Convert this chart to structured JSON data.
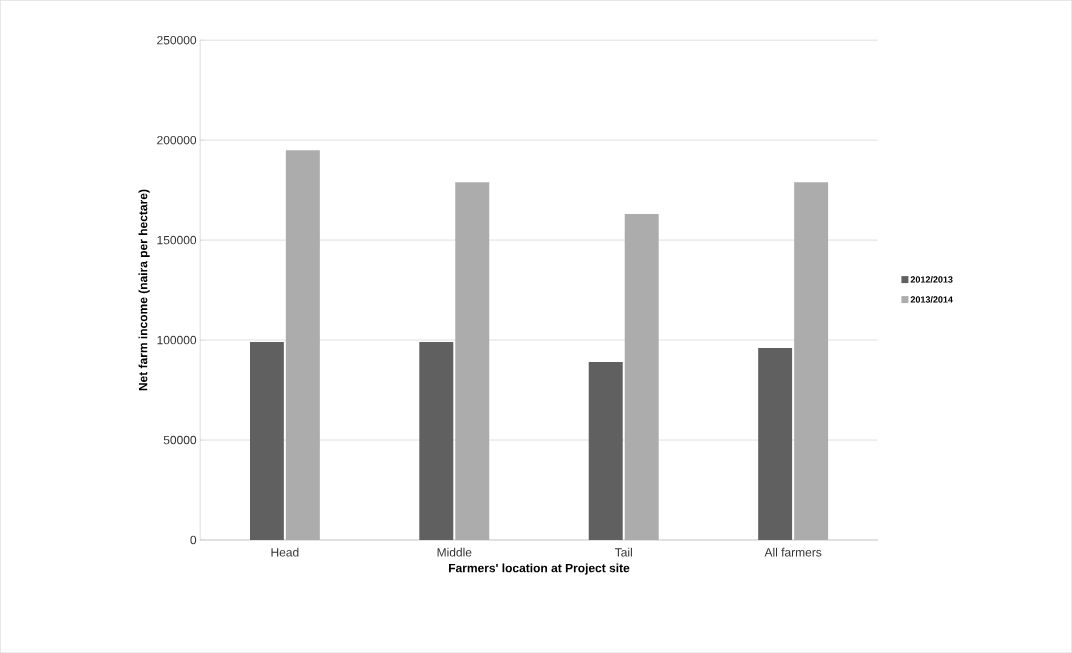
{
  "chart_data": {
    "type": "bar",
    "xlabel": "Farmers' location at Project site",
    "ylabel": "Net farm income (naira per hectare)",
    "categories": [
      "Head",
      "Middle",
      "Tail",
      "All farmers"
    ],
    "series": [
      {
        "name": "2012/2013",
        "color": "#606060",
        "values": [
          99000,
          99000,
          89000,
          96000
        ]
      },
      {
        "name": "2013/2014",
        "color": "#acacac",
        "values": [
          195000,
          179000,
          163000,
          179000
        ]
      }
    ],
    "ylim": [
      0,
      250000
    ],
    "yticks": [
      0,
      50000,
      100000,
      150000,
      200000,
      250000
    ],
    "grid": "y",
    "legend": "right"
  }
}
